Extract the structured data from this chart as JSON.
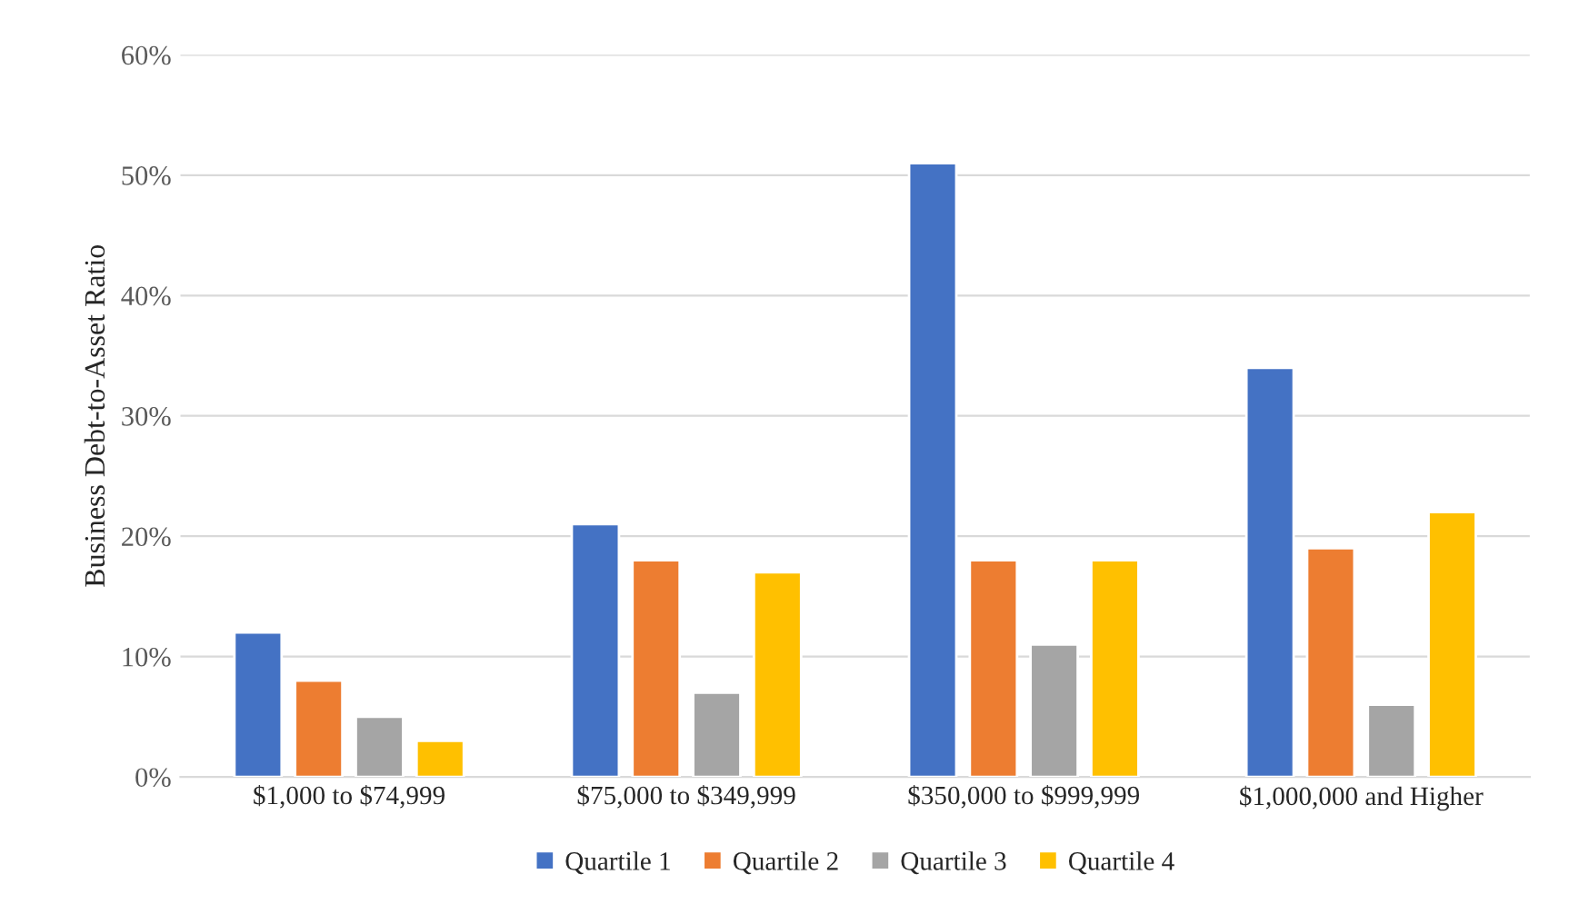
{
  "chart_data": {
    "type": "bar",
    "ylabel": "Business Debt-to-Asset Ratio",
    "categories": [
      "$1,000 to $74,999",
      "$75,000 to $349,999",
      "$350,000 to $999,999",
      "$1,000,000 and Higher"
    ],
    "series": [
      {
        "name": "Quartile 1",
        "color": "#4472c4",
        "values": [
          12,
          21,
          51,
          34
        ]
      },
      {
        "name": "Quartile 2",
        "color": "#ed7d31",
        "values": [
          8,
          18,
          18,
          19
        ]
      },
      {
        "name": "Quartile 3",
        "color": "#a5a5a5",
        "values": [
          5,
          7,
          11,
          6
        ]
      },
      {
        "name": "Quartile 4",
        "color": "#ffc000",
        "values": [
          3,
          17,
          18,
          22
        ]
      }
    ],
    "ylim": [
      0,
      60
    ],
    "yticks": [
      {
        "value": 0,
        "label": "0%"
      },
      {
        "value": 10,
        "label": "10%"
      },
      {
        "value": 20,
        "label": "20%"
      },
      {
        "value": 30,
        "label": "30%"
      },
      {
        "value": 40,
        "label": "40%"
      },
      {
        "value": 50,
        "label": "50%"
      },
      {
        "value": 60,
        "label": "60%"
      }
    ],
    "grid": "y",
    "legend": "bottom"
  }
}
